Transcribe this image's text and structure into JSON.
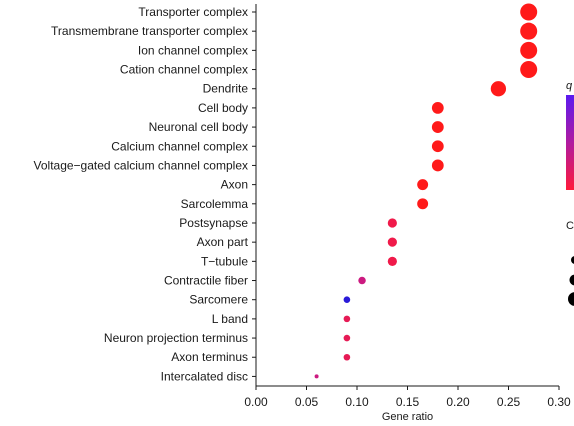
{
  "chart_data": {
    "type": "scatter",
    "title": "",
    "xlabel": "Gene ratio",
    "ylabel": "",
    "xlim": [
      0.0,
      0.3
    ],
    "xticks": [
      "0.00",
      "0.05",
      "0.10",
      "0.15",
      "0.20",
      "0.25",
      "0.30"
    ],
    "categories": [
      "Transporter complex",
      "Transmembrane transporter complex",
      "Ion channel complex",
      "Cation channel complex",
      "Dendrite",
      "Cell body",
      "Neuronal cell body",
      "Calcium channel complex",
      "Voltage−gated calcium channel complex",
      "Axon",
      "Sarcolemma",
      "Postsynapse",
      "Axon part",
      "T−tubule",
      "Contractile fiber",
      "Sarcomere",
      "L band",
      "Neuron projection terminus",
      "Axon terminus",
      "Intercalated disc"
    ],
    "points": [
      {
        "term": "Transporter complex",
        "gene_ratio": 0.27,
        "count": 18,
        "color": "#ff1a1a"
      },
      {
        "term": "Transmembrane transporter complex",
        "gene_ratio": 0.27,
        "count": 18,
        "color": "#ff1a1a"
      },
      {
        "term": "Ion channel complex",
        "gene_ratio": 0.27,
        "count": 18,
        "color": "#ff1a1a"
      },
      {
        "term": "Cation channel complex",
        "gene_ratio": 0.27,
        "count": 18,
        "color": "#ff1a1a"
      },
      {
        "term": "Dendrite",
        "gene_ratio": 0.24,
        "count": 16,
        "color": "#ff1a1a"
      },
      {
        "term": "Cell body",
        "gene_ratio": 0.18,
        "count": 12,
        "color": "#ff1a1a"
      },
      {
        "term": "Neuronal cell body",
        "gene_ratio": 0.18,
        "count": 12,
        "color": "#ff1a1a"
      },
      {
        "term": "Calcium channel complex",
        "gene_ratio": 0.18,
        "count": 12,
        "color": "#ff1a1a"
      },
      {
        "term": "Voltage−gated calcium channel complex",
        "gene_ratio": 0.18,
        "count": 12,
        "color": "#ff1a1a"
      },
      {
        "term": "Axon",
        "gene_ratio": 0.165,
        "count": 11,
        "color": "#ff1a1a"
      },
      {
        "term": "Sarcolemma",
        "gene_ratio": 0.165,
        "count": 11,
        "color": "#ff1a1a"
      },
      {
        "term": "Postsynapse",
        "gene_ratio": 0.135,
        "count": 9,
        "color": "#f01a4a"
      },
      {
        "term": "Axon part",
        "gene_ratio": 0.135,
        "count": 9,
        "color": "#f01a4a"
      },
      {
        "term": "T−tubule",
        "gene_ratio": 0.135,
        "count": 9,
        "color": "#f01a4a"
      },
      {
        "term": "Contractile fiber",
        "gene_ratio": 0.105,
        "count": 7,
        "color": "#cc1a80"
      },
      {
        "term": "Sarcomere",
        "gene_ratio": 0.09,
        "count": 6,
        "color": "#2a1ad8"
      },
      {
        "term": "L band",
        "gene_ratio": 0.09,
        "count": 6,
        "color": "#e61a55"
      },
      {
        "term": "Neuron projection terminus",
        "gene_ratio": 0.09,
        "count": 6,
        "color": "#e61a55"
      },
      {
        "term": "Axon terminus",
        "gene_ratio": 0.09,
        "count": 6,
        "color": "#e61a55"
      },
      {
        "term": "Intercalated disc",
        "gene_ratio": 0.06,
        "count": 3,
        "color": "#cc1a80"
      }
    ],
    "legend": {
      "color_title": "q",
      "color_gradient": [
        "#5a1af0",
        "#b01aa0",
        "#ff1a3a"
      ],
      "size_title": "C"
    },
    "grid": false
  }
}
